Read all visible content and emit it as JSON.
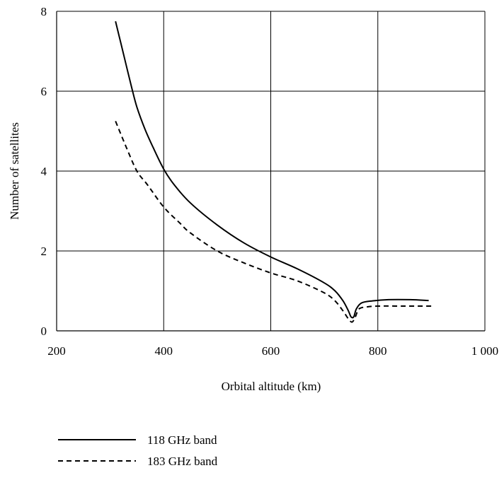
{
  "chart_data": {
    "type": "line",
    "title": "",
    "xlabel": "Orbital altitude (km)",
    "ylabel": "Number of satellites",
    "xlim": [
      200,
      1000
    ],
    "ylim": [
      0,
      8
    ],
    "x_ticks": [
      200,
      400,
      600,
      800,
      1000
    ],
    "x_tick_labels": [
      "200",
      "400",
      "600",
      "800",
      "1 000"
    ],
    "y_ticks": [
      0,
      2,
      4,
      6,
      8
    ],
    "y_tick_labels": [
      "0",
      "2",
      "4",
      "6",
      "8"
    ],
    "grid": true,
    "legend_position": "bottom-left",
    "series": [
      {
        "name": "118 GHz band",
        "style": "solid",
        "color": "#000000",
        "points": [
          [
            310,
            7.75
          ],
          [
            320,
            7.2
          ],
          [
            330,
            6.65
          ],
          [
            340,
            6.1
          ],
          [
            350,
            5.6
          ],
          [
            365,
            5.05
          ],
          [
            380,
            4.6
          ],
          [
            400,
            4.05
          ],
          [
            420,
            3.65
          ],
          [
            450,
            3.2
          ],
          [
            500,
            2.65
          ],
          [
            550,
            2.2
          ],
          [
            600,
            1.85
          ],
          [
            650,
            1.55
          ],
          [
            700,
            1.2
          ],
          [
            720,
            1.0
          ],
          [
            735,
            0.75
          ],
          [
            745,
            0.5
          ],
          [
            750,
            0.35
          ],
          [
            755,
            0.35
          ],
          [
            760,
            0.55
          ],
          [
            770,
            0.7
          ],
          [
            790,
            0.75
          ],
          [
            820,
            0.78
          ],
          [
            860,
            0.78
          ],
          [
            895,
            0.76
          ]
        ]
      },
      {
        "name": "183 GHz band",
        "style": "dashed",
        "color": "#000000",
        "points": [
          [
            310,
            5.25
          ],
          [
            330,
            4.6
          ],
          [
            350,
            4.0
          ],
          [
            370,
            3.65
          ],
          [
            400,
            3.1
          ],
          [
            430,
            2.7
          ],
          [
            450,
            2.45
          ],
          [
            500,
            2.0
          ],
          [
            550,
            1.7
          ],
          [
            600,
            1.45
          ],
          [
            650,
            1.25
          ],
          [
            700,
            0.95
          ],
          [
            720,
            0.75
          ],
          [
            735,
            0.5
          ],
          [
            745,
            0.3
          ],
          [
            752,
            0.22
          ],
          [
            758,
            0.35
          ],
          [
            765,
            0.55
          ],
          [
            780,
            0.6
          ],
          [
            800,
            0.62
          ],
          [
            850,
            0.62
          ],
          [
            900,
            0.62
          ]
        ]
      }
    ]
  }
}
